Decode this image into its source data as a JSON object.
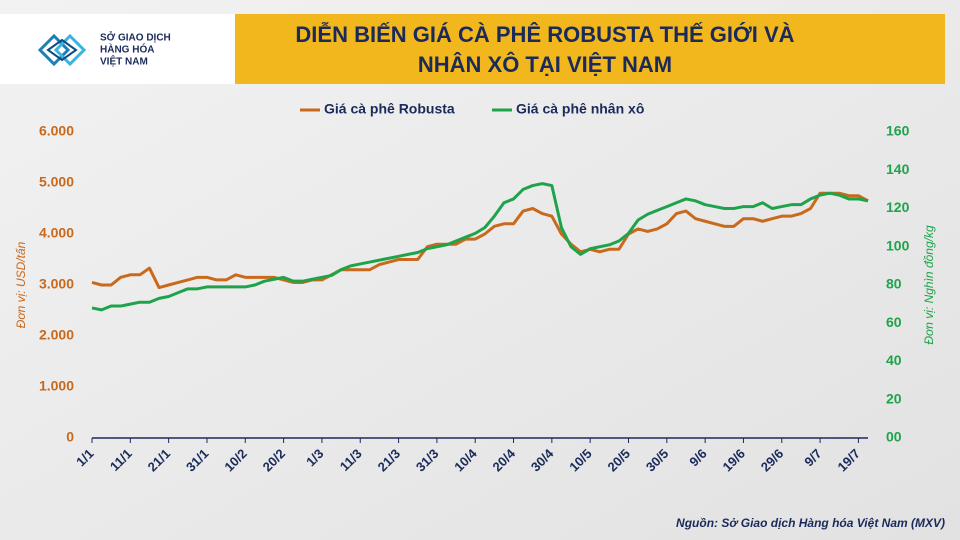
{
  "logo": {
    "lines": [
      "SỞ GIAO DỊCH",
      "HÀNG HÓA",
      "VIỆT NAM"
    ]
  },
  "chart_data": {
    "type": "line",
    "title": [
      "DIỄN BIẾN GIÁ CÀ PHÊ ROBUSTA THẾ GIỚI VÀ",
      "NHÂN XÔ TẠI VIỆT NAM"
    ],
    "y_label": "Đơn vị: USD/tấn",
    "y2_label": "Đơn vị: Nghìn đồng/kg",
    "source": "Nguồn: Sở Giao dịch Hàng hóa Việt Nam (MXV)",
    "categories": [
      "1/1",
      null,
      null,
      null,
      "11/1",
      null,
      null,
      null,
      "21/1",
      null,
      null,
      null,
      "31/1",
      null,
      null,
      null,
      "10/2",
      null,
      null,
      null,
      "20/2",
      null,
      null,
      null,
      "1/3",
      null,
      null,
      null,
      "11/3",
      null,
      null,
      null,
      "21/3",
      null,
      null,
      null,
      "31/3",
      null,
      null,
      null,
      "10/4",
      null,
      null,
      null,
      "20/4",
      null,
      null,
      null,
      "30/4",
      null,
      null,
      null,
      "10/5",
      null,
      null,
      null,
      "20/5",
      null,
      null,
      null,
      "30/5",
      null,
      null,
      null,
      "9/6",
      null,
      null,
      null,
      "19/6",
      null,
      null,
      null,
      "29/6",
      null,
      null,
      null,
      "9/7",
      null,
      null,
      null,
      "19/7",
      null
    ],
    "ylim": [
      0,
      6000
    ],
    "yticks": [
      0,
      {
        "value": 1000,
        "label": "1.000"
      },
      {
        "value": 2000,
        "label": "2.000"
      },
      {
        "value": 3000,
        "label": "3.000"
      },
      {
        "value": 4000,
        "label": "4.000"
      },
      {
        "value": 5000,
        "label": "5.000"
      },
      {
        "value": 6000,
        "label": "6.000"
      }
    ],
    "y2lim": [
      0,
      160
    ],
    "y2ticks": [
      {
        "value": 0,
        "label": "00"
      },
      20,
      40,
      60,
      80,
      100,
      120,
      140,
      160
    ],
    "series": [
      {
        "name": "Giá cà phê Robusta",
        "color": "#c8691c",
        "values": [
          3050,
          3000,
          3000,
          3150,
          3200,
          3200,
          3330,
          2950,
          3000,
          3050,
          3100,
          3150,
          3150,
          3100,
          3100,
          3200,
          3150,
          3150,
          3150,
          3150,
          3100,
          3050,
          3050,
          3100,
          3100,
          3200,
          3300,
          3300,
          3300,
          3300,
          3400,
          3450,
          3500,
          3500,
          3500,
          3750,
          3800,
          3800,
          3800,
          3900,
          3900,
          4000,
          4150,
          4200,
          4200,
          4450,
          4500,
          4400,
          4350,
          4000,
          3800,
          3650,
          3700,
          3650,
          3700,
          3700,
          4000,
          4100,
          4050,
          4100,
          4200,
          4400,
          4450,
          4300,
          4250,
          4200,
          4150,
          4150,
          4300,
          4300,
          4250,
          4300,
          4350,
          4350,
          4400,
          4500,
          4800,
          4800,
          4800,
          4750,
          4750,
          4650
        ]
      },
      {
        "name": "Giá cà phê nhân xô",
        "color": "#1fa34a",
        "axis": "y2",
        "values": [
          68,
          67,
          69,
          69,
          70,
          71,
          71,
          73,
          74,
          76,
          78,
          78,
          79,
          79,
          79,
          79,
          79,
          80,
          82,
          83,
          84,
          82,
          82,
          83,
          84,
          85,
          88,
          90,
          91,
          92,
          93,
          94,
          95,
          96,
          97,
          99,
          100,
          101,
          103,
          105,
          107,
          110,
          116,
          123,
          125,
          130,
          132,
          133,
          132,
          110,
          100,
          96,
          99,
          100,
          101,
          103,
          107,
          114,
          117,
          119,
          121,
          123,
          125,
          124,
          122,
          121,
          120,
          120,
          121,
          121,
          123,
          120,
          121,
          122,
          122,
          125,
          127,
          128,
          127,
          125,
          125,
          124
        ]
      }
    ]
  }
}
